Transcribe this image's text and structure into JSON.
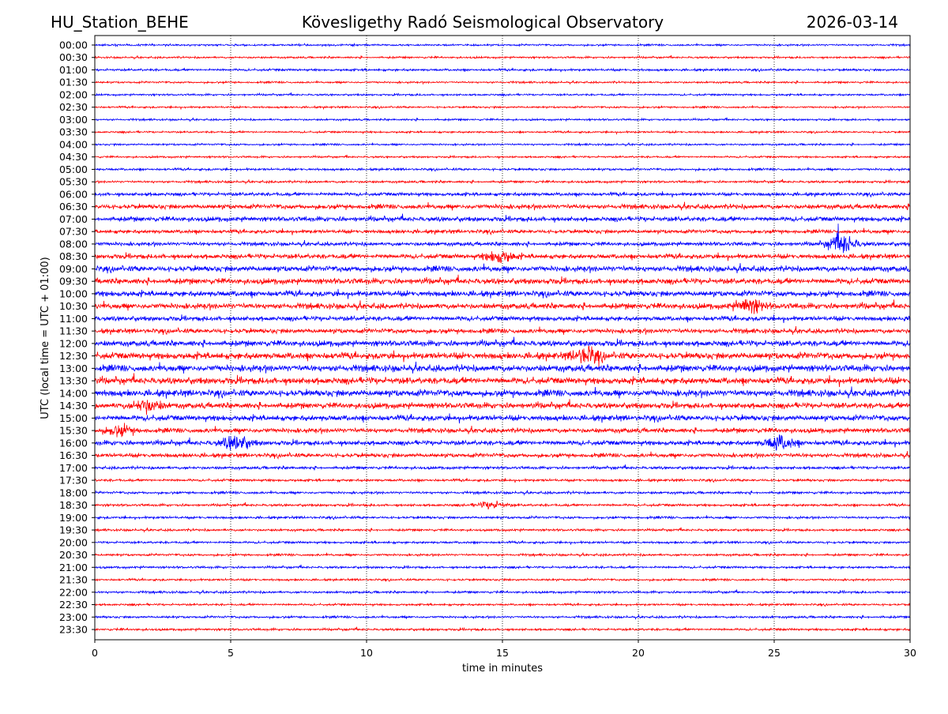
{
  "header": {
    "station": "HU_Station_BEHE",
    "title": "Kövesligethy Radó Seismological Observatory",
    "date": "2026-03-14"
  },
  "chart_data": {
    "type": "line",
    "subtype": "helicorder",
    "xlabel": "time in minutes",
    "ylabel": "UTC (local time = UTC + 01:00)",
    "xlim": [
      0,
      30
    ],
    "x_ticks": [
      "0",
      "5",
      "10",
      "15",
      "20",
      "25",
      "30"
    ],
    "x_tick_values": [
      0,
      5,
      10,
      15,
      20,
      25,
      30
    ],
    "grid": "vertical dotted lines at x ticks",
    "colors": [
      "#0000ff",
      "#ff0000"
    ],
    "traces": [
      {
        "label": "00:00",
        "noise": 1.0
      },
      {
        "label": "00:30",
        "noise": 1.0
      },
      {
        "label": "01:00",
        "noise": 1.2
      },
      {
        "label": "01:30",
        "noise": 1.0
      },
      {
        "label": "02:00",
        "noise": 1.0
      },
      {
        "label": "02:30",
        "noise": 1.0
      },
      {
        "label": "03:00",
        "noise": 1.0
      },
      {
        "label": "03:30",
        "noise": 1.0
      },
      {
        "label": "04:00",
        "noise": 1.0
      },
      {
        "label": "04:30",
        "noise": 1.0
      },
      {
        "label": "05:00",
        "noise": 1.2
      },
      {
        "label": "05:30",
        "noise": 1.2
      },
      {
        "label": "06:00",
        "noise": 1.8
      },
      {
        "label": "06:30",
        "noise": 2.5
      },
      {
        "label": "07:00",
        "noise": 2.5
      },
      {
        "label": "07:30",
        "noise": 2.0
      },
      {
        "label": "08:00",
        "noise": 2.0,
        "events": [
          [
            27.5,
            8
          ]
        ]
      },
      {
        "label": "08:30",
        "noise": 2.5,
        "events": [
          [
            14.9,
            5
          ]
        ]
      },
      {
        "label": "09:00",
        "noise": 3.0
      },
      {
        "label": "09:30",
        "noise": 3.0
      },
      {
        "label": "10:00",
        "noise": 3.0
      },
      {
        "label": "10:30",
        "noise": 3.0,
        "events": [
          [
            24.1,
            6
          ]
        ]
      },
      {
        "label": "11:00",
        "noise": 2.5
      },
      {
        "label": "11:30",
        "noise": 2.5
      },
      {
        "label": "12:00",
        "noise": 3.0
      },
      {
        "label": "12:30",
        "noise": 3.5,
        "events": [
          [
            18.1,
            6
          ]
        ]
      },
      {
        "label": "13:00",
        "noise": 3.5
      },
      {
        "label": "13:30",
        "noise": 3.5
      },
      {
        "label": "14:00",
        "noise": 3.5
      },
      {
        "label": "14:30",
        "noise": 3.0,
        "events": [
          [
            1.9,
            5
          ]
        ]
      },
      {
        "label": "15:00",
        "noise": 3.0
      },
      {
        "label": "15:30",
        "noise": 2.5,
        "events": [
          [
            0.9,
            4
          ]
        ]
      },
      {
        "label": "16:00",
        "noise": 2.5,
        "events": [
          [
            5.2,
            6
          ],
          [
            25.2,
            6
          ]
        ]
      },
      {
        "label": "16:30",
        "noise": 2.2
      },
      {
        "label": "17:00",
        "noise": 1.5
      },
      {
        "label": "17:30",
        "noise": 1.3
      },
      {
        "label": "18:00",
        "noise": 1.3
      },
      {
        "label": "18:30",
        "noise": 1.3,
        "events": [
          [
            14.6,
            3
          ]
        ]
      },
      {
        "label": "19:00",
        "noise": 1.3
      },
      {
        "label": "19:30",
        "noise": 1.2
      },
      {
        "label": "20:00",
        "noise": 1.2
      },
      {
        "label": "20:30",
        "noise": 1.2
      },
      {
        "label": "21:00",
        "noise": 1.2
      },
      {
        "label": "21:30",
        "noise": 1.1
      },
      {
        "label": "22:00",
        "noise": 1.2
      },
      {
        "label": "22:30",
        "noise": 1.1
      },
      {
        "label": "23:00",
        "noise": 1.2
      },
      {
        "label": "23:30",
        "noise": 1.2
      }
    ]
  }
}
